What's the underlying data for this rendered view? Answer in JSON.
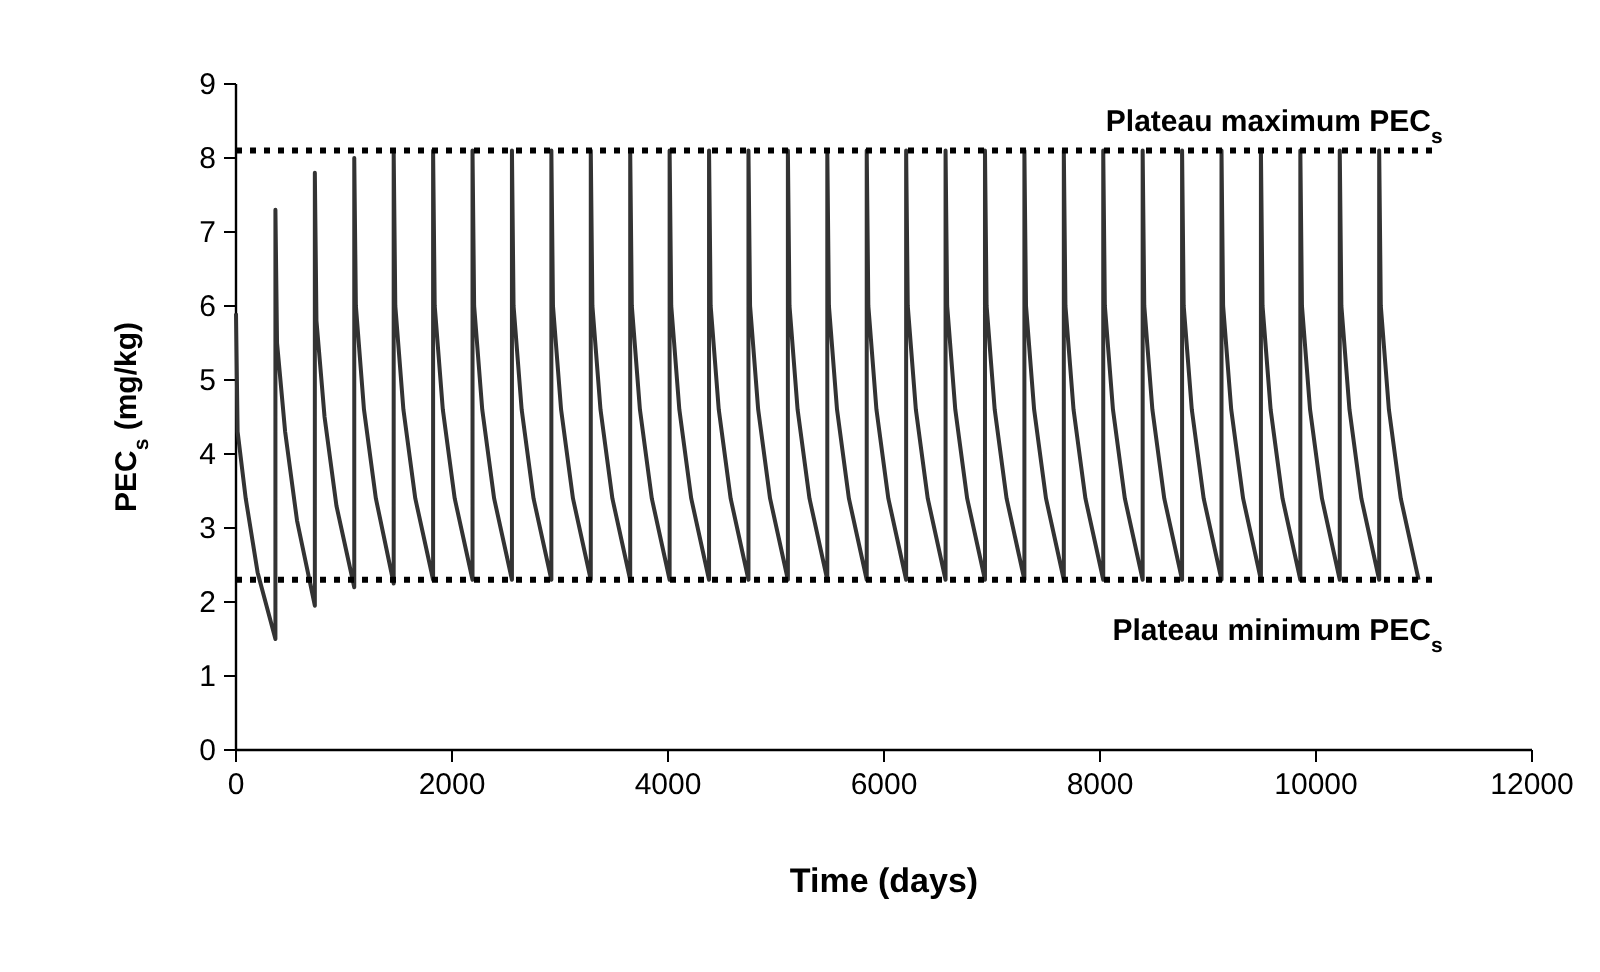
{
  "chart_data": {
    "type": "line",
    "xlabel": "Time (days)",
    "ylabel": "PEC$_{s}$ (mg/kg)",
    "xlim": [
      0,
      12000
    ],
    "xticks": [
      0,
      2000,
      4000,
      6000,
      8000,
      10000,
      12000
    ],
    "ylim": [
      0,
      9
    ],
    "yticks": [
      0,
      1,
      2,
      3,
      4,
      5,
      6,
      7,
      8,
      9
    ],
    "grid": false,
    "marker": "none",
    "line_style": "solid",
    "x": [
      0,
      15,
      90,
      200,
      365,
      365,
      380,
      455,
      565,
      730,
      730,
      745,
      820,
      930,
      1095,
      1095,
      1110,
      1185,
      1295,
      1460,
      1460,
      1475,
      1550,
      1660,
      1825,
      1825,
      1840,
      1915,
      2025,
      2190,
      2190,
      2205,
      2280,
      2390,
      2555,
      2555,
      2570,
      2645,
      2755,
      2920,
      2920,
      2935,
      3010,
      3120,
      3285,
      3285,
      3300,
      3375,
      3485,
      3650,
      3650,
      3665,
      3740,
      3850,
      4015,
      4015,
      4030,
      4105,
      4215,
      4380,
      4380,
      4395,
      4470,
      4580,
      4745,
      4745,
      4760,
      4835,
      4945,
      5110,
      5110,
      5125,
      5200,
      5310,
      5475,
      5475,
      5490,
      5565,
      5675,
      5840,
      5840,
      5855,
      5930,
      6040,
      6205,
      6205,
      6220,
      6295,
      6405,
      6570,
      6570,
      6585,
      6660,
      6770,
      6935,
      6935,
      6950,
      7025,
      7135,
      7300,
      7300,
      7315,
      7390,
      7500,
      7665,
      7665,
      7680,
      7755,
      7865,
      8030,
      8030,
      8045,
      8120,
      8230,
      8395,
      8395,
      8410,
      8485,
      8595,
      8760,
      8760,
      8775,
      8850,
      8960,
      9125,
      9125,
      9140,
      9215,
      9325,
      9490,
      9490,
      9505,
      9580,
      9690,
      9855,
      9855,
      9870,
      9945,
      10055,
      10220,
      10220,
      10235,
      10310,
      10420,
      10585,
      10585,
      10600,
      10675,
      10785,
      10950
    ],
    "series": [
      {
        "color": "#333333",
        "values": [
          5.9,
          4.3,
          3.4,
          2.4,
          1.5,
          7.3,
          5.5,
          4.3,
          3.1,
          1.95,
          7.8,
          5.8,
          4.5,
          3.3,
          2.2,
          8.0,
          6.0,
          4.6,
          3.4,
          2.25,
          8.1,
          6.0,
          4.6,
          3.4,
          2.3,
          8.1,
          6.0,
          4.6,
          3.4,
          2.3,
          8.1,
          6.0,
          4.6,
          3.4,
          2.3,
          8.1,
          6.0,
          4.6,
          3.4,
          2.3,
          8.1,
          6.0,
          4.6,
          3.4,
          2.3,
          8.1,
          6.0,
          4.6,
          3.4,
          2.3,
          8.1,
          6.0,
          4.6,
          3.4,
          2.3,
          8.1,
          6.0,
          4.6,
          3.4,
          2.3,
          8.1,
          6.0,
          4.6,
          3.4,
          2.3,
          8.1,
          6.0,
          4.6,
          3.4,
          2.3,
          8.1,
          6.0,
          4.6,
          3.4,
          2.3,
          8.1,
          6.0,
          4.6,
          3.4,
          2.3,
          8.1,
          6.0,
          4.6,
          3.4,
          2.3,
          8.1,
          6.0,
          4.6,
          3.4,
          2.3,
          8.1,
          6.0,
          4.6,
          3.4,
          2.3,
          8.1,
          6.0,
          4.6,
          3.4,
          2.3,
          8.1,
          6.0,
          4.6,
          3.4,
          2.3,
          8.1,
          6.0,
          4.6,
          3.4,
          2.3,
          8.1,
          6.0,
          4.6,
          3.4,
          2.3,
          8.1,
          6.0,
          4.6,
          3.4,
          2.3,
          8.1,
          6.0,
          4.6,
          3.4,
          2.3,
          8.1,
          6.0,
          4.6,
          3.4,
          2.3,
          8.1,
          6.0,
          4.6,
          3.4,
          2.3,
          8.1,
          6.0,
          4.6,
          3.4,
          2.3,
          8.1,
          6.0,
          4.6,
          3.4,
          2.3,
          8.1,
          6.0,
          4.6,
          3.4,
          2.3
        ]
      }
    ],
    "ref_lines": [
      {
        "axis": "y",
        "value": 8.1,
        "label": "Plateau maximum PEC$_{s}$",
        "color": "#000000",
        "line_style": "dotted"
      },
      {
        "axis": "y",
        "value": 2.3,
        "label": "Plateau minimum PEC$_{s}$",
        "color": "#000000",
        "line_style": "dotted"
      }
    ]
  }
}
